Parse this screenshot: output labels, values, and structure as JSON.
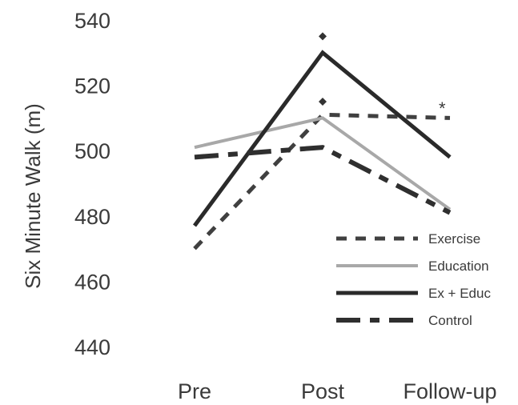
{
  "chart_data": {
    "type": "line",
    "title": "",
    "xlabel": "",
    "ylabel": "Six Minute Walk (m)",
    "categories": [
      "Pre",
      "Post",
      "Follow-up"
    ],
    "ylim": [
      440,
      540
    ],
    "yticks": [
      440,
      460,
      480,
      500,
      520,
      540
    ],
    "grid": false,
    "legend_position": "bottom-right",
    "series": [
      {
        "name": "Exercise",
        "values": [
          470,
          511,
          510
        ],
        "style": "dashed",
        "color": "#404040"
      },
      {
        "name": "Education",
        "values": [
          501,
          510,
          482
        ],
        "style": "solid-light",
        "color": "#a8a8a8"
      },
      {
        "name": "Ex + Educ",
        "values": [
          477,
          530,
          498
        ],
        "style": "solid",
        "color": "#2a2a2a"
      },
      {
        "name": "Control",
        "values": [
          498,
          501,
          481
        ],
        "style": "long-dash",
        "color": "#2f2f2f"
      }
    ],
    "annotations": [
      {
        "type": "diamond",
        "category": "Post",
        "value": 535
      },
      {
        "type": "diamond",
        "category": "Post",
        "value": 515
      },
      {
        "type": "text",
        "text": "*",
        "category": "Follow-up",
        "value": 513
      }
    ]
  }
}
